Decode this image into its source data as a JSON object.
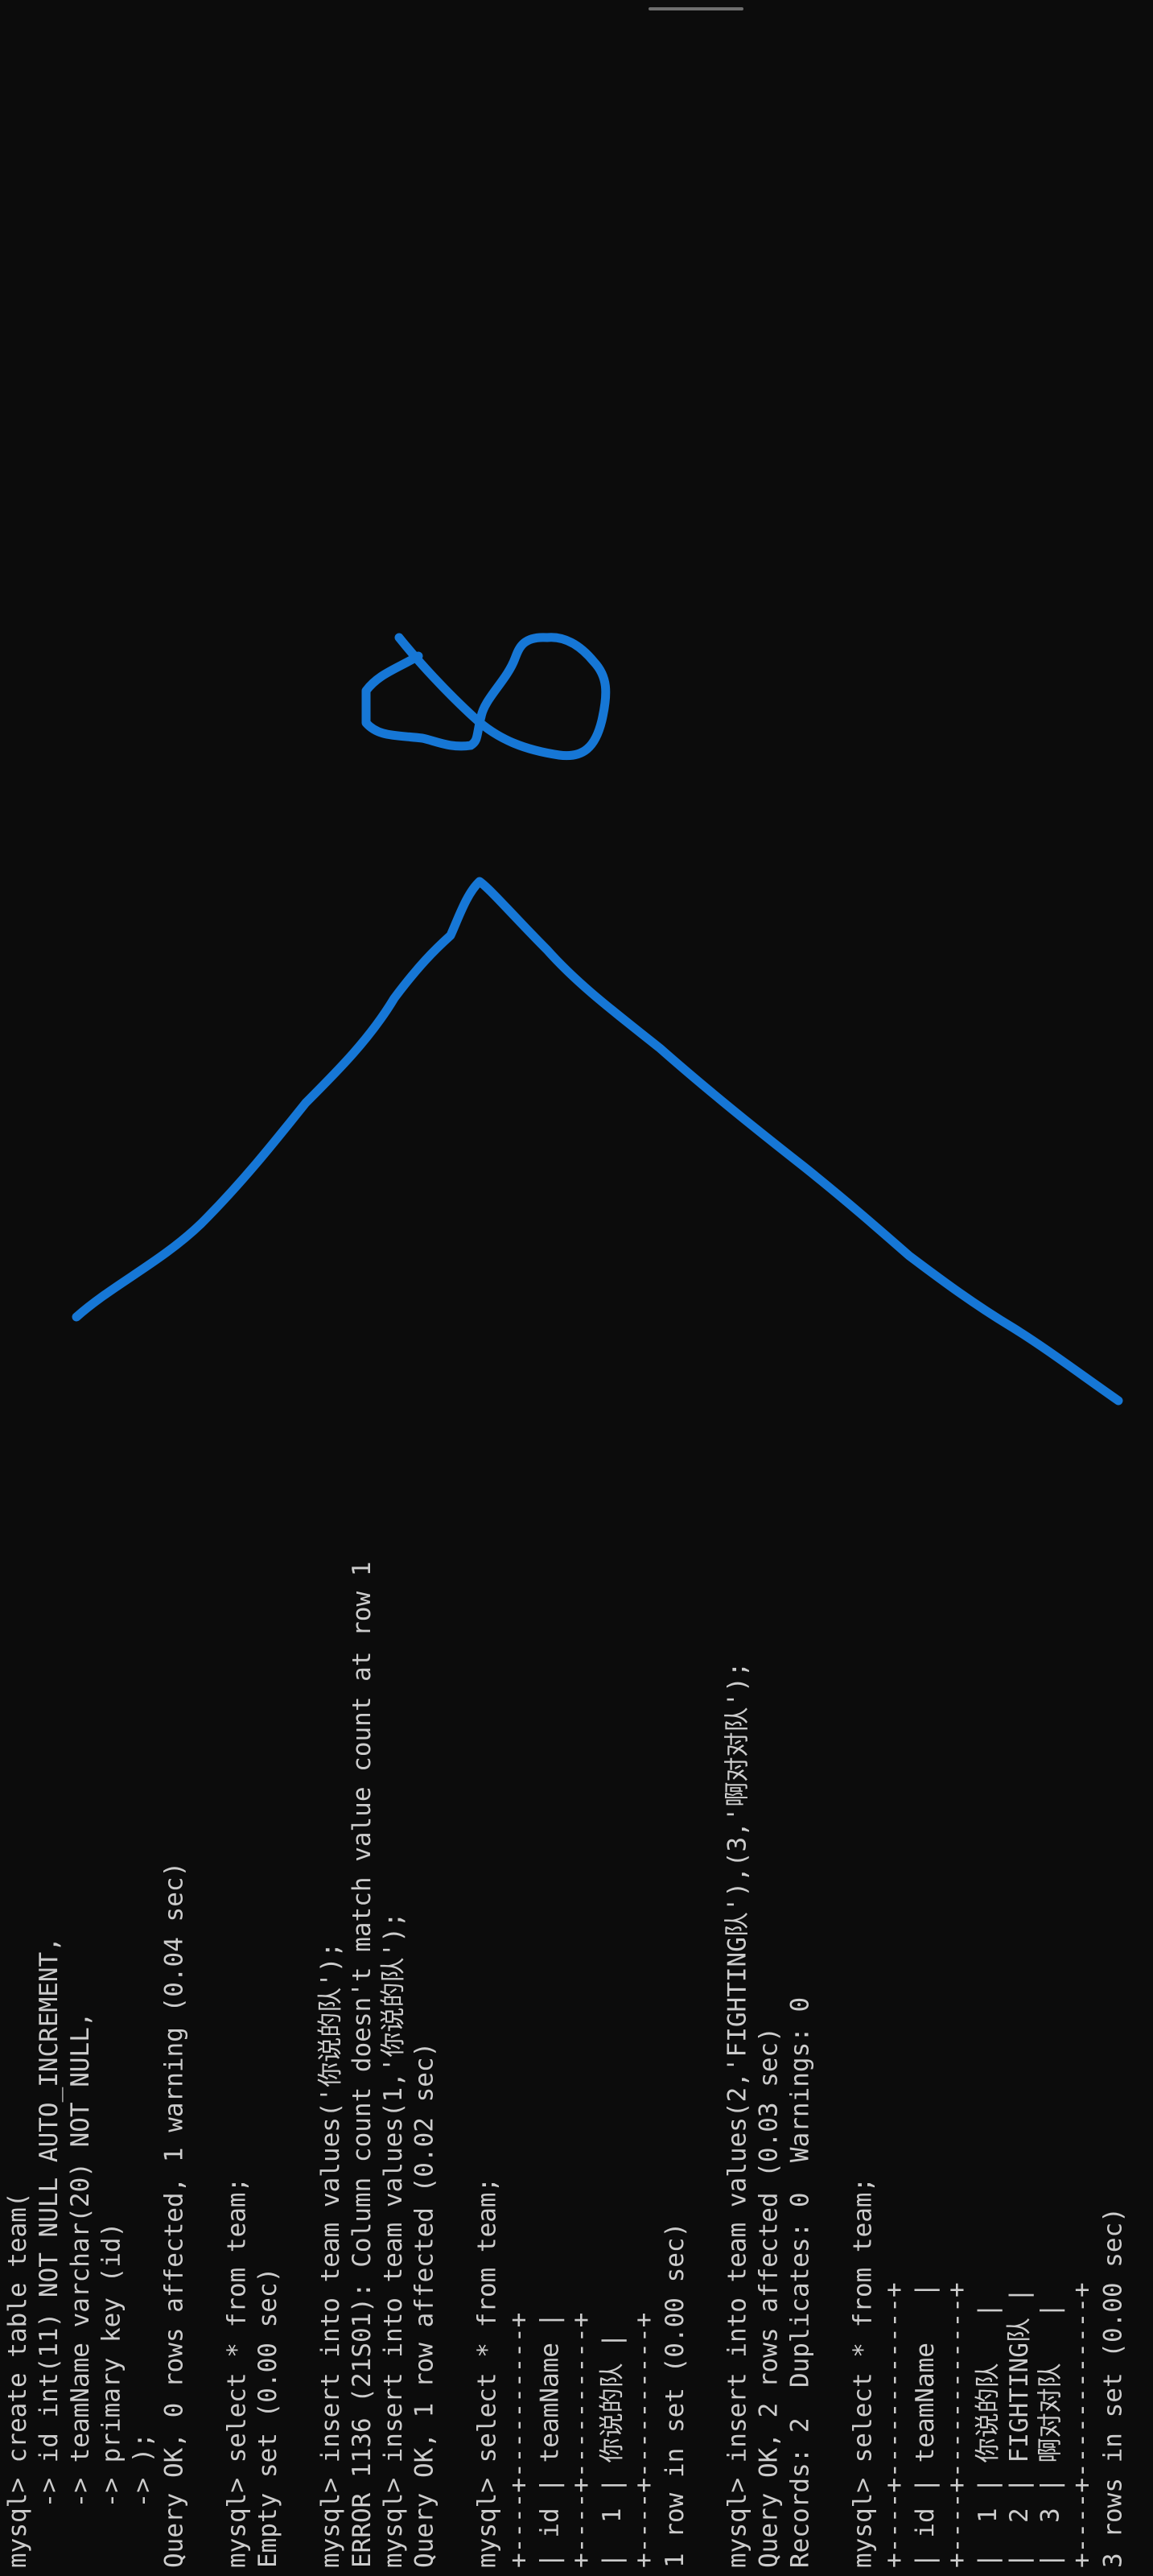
{
  "colors": {
    "background": "#0c0c0c",
    "terminal_text": "#cccccc",
    "ink": "#1677d6"
  },
  "terminal": {
    "lines": [
      "mysql> create table team(",
      "    -> id int(11) NOT NULL AUTO_INCREMENT,",
      "    -> teamName varchar(20) NOT NULL,",
      "    -> primary key (id)",
      "    -> );",
      "Query OK, 0 rows affected, 1 warning (0.04 sec)",
      "",
      "mysql> select * from team;",
      "Empty set (0.00 sec)",
      "",
      "mysql> insert into team values('你说的队');",
      "ERROR 1136 (21S01): Column count doesn't match value count at row 1",
      "mysql> insert into team values(1,'你说的队');",
      "Query OK, 1 row affected (0.02 sec)",
      "",
      "mysql> select * from team;",
      "+----+----------+",
      "| id | teamName |",
      "+----+----------+",
      "|  1 | 你说的队 |",
      "+----+----------+",
      "1 row in set (0.00 sec)",
      "",
      "mysql> insert into team values(2,'FIGHTING队'),(3,'啊对对队');",
      "Query OK, 2 rows affected (0.03 sec)",
      "Records: 2  Duplicates: 0  Warnings: 0",
      "",
      "mysql> select * from team;",
      "+----+------------+",
      "| id | teamName   |",
      "+----+------------+",
      "|  1 | 你说的队   |",
      "|  2 | FIGHTING队 |",
      "|  3 | 啊对对队   |",
      "+----+------------+",
      "3 rows in set (0.00 sec)"
    ]
  }
}
